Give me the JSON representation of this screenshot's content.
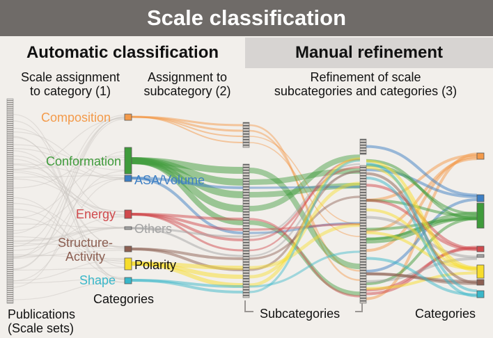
{
  "title": "Scale classification",
  "sections": {
    "automatic": "Automatic classification",
    "manual": "Manual refinement"
  },
  "steps": {
    "step1_line1": "Scale assignment",
    "step1_line2": "to category (1)",
    "step2_line1": "Assignment to",
    "step2_line2": "subcategory (2)",
    "step3_line1": "Refinement of scale",
    "step3_line2": "subcategories and categories (3)"
  },
  "bottom": {
    "publications_line1": "Publications",
    "publications_line2": "(Scale sets)",
    "categories_mid": "Categories",
    "subcategories": "Subcategories",
    "categories_right": "Categories"
  },
  "categories": [
    {
      "name": "Composition",
      "color": "#f39a4a"
    },
    {
      "name": "Conformation",
      "color": "#3f9b3b"
    },
    {
      "name": "ASA/Volume",
      "color": "#3d7fc4"
    },
    {
      "name": "Energy",
      "color": "#d04a4d"
    },
    {
      "name": "Others",
      "color": "#a3a3a3"
    },
    {
      "name": "Structure-",
      "color": "#8c5f52"
    },
    {
      "name": "Activity",
      "color": "#8c5f52"
    },
    {
      "name": "Polarity",
      "color": "#f7dd2c"
    },
    {
      "name": "Shape",
      "color": "#3ab7c9"
    }
  ]
}
